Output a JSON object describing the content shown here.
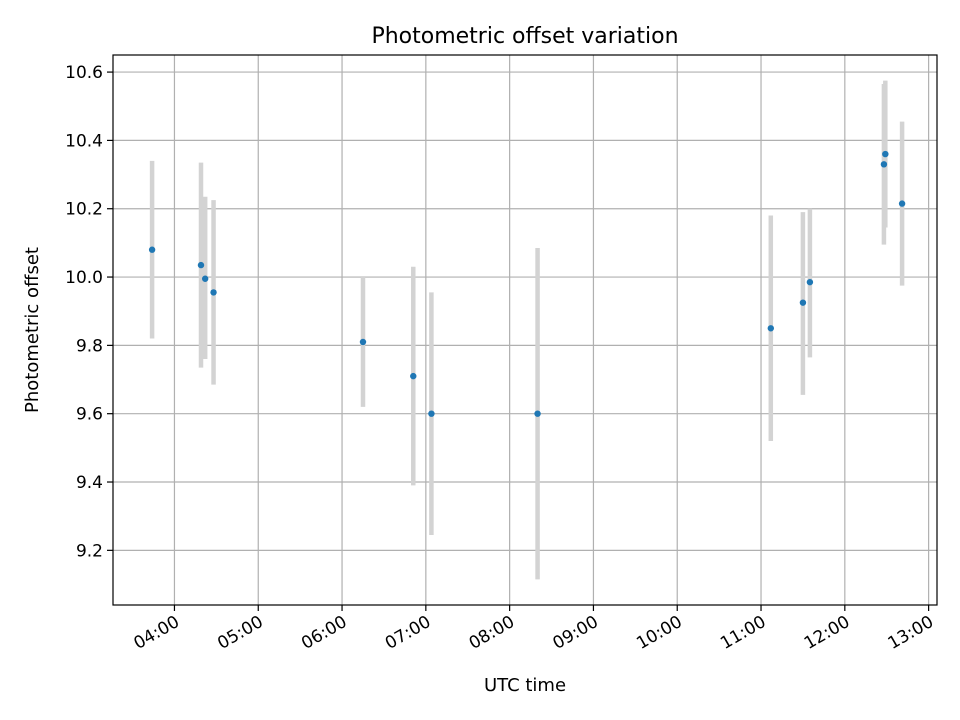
{
  "chart_data": {
    "type": "scatter",
    "title": "Photometric offset variation",
    "xlabel": "UTC time",
    "ylabel": "Photometric offset",
    "xlim": [
      "03:16",
      "13:06"
    ],
    "ylim": [
      9.04,
      10.65
    ],
    "x_ticks": [
      "04:00",
      "05:00",
      "06:00",
      "07:00",
      "08:00",
      "09:00",
      "10:00",
      "11:00",
      "12:00",
      "13:00"
    ],
    "y_ticks": [
      9.2,
      9.4,
      9.6,
      9.8,
      10.0,
      10.2,
      10.4,
      10.6
    ],
    "grid": true,
    "marker_color": "#1f77b4",
    "errorbar_color": "#d3d3d3",
    "series": [
      {
        "points": [
          {
            "x": "03:44",
            "y": 10.08,
            "yerr": [
              9.82,
              10.34
            ]
          },
          {
            "x": "04:19",
            "y": 10.035,
            "yerr": [
              9.735,
              10.335
            ]
          },
          {
            "x": "04:22",
            "y": 9.995,
            "yerr": [
              9.76,
              10.235
            ]
          },
          {
            "x": "04:28",
            "y": 9.955,
            "yerr": [
              9.685,
              10.225
            ]
          },
          {
            "x": "06:15",
            "y": 9.81,
            "yerr": [
              9.62,
              10.0
            ]
          },
          {
            "x": "06:51",
            "y": 9.71,
            "yerr": [
              9.39,
              10.03
            ]
          },
          {
            "x": "07:04",
            "y": 9.6,
            "yerr": [
              9.245,
              9.955
            ]
          },
          {
            "x": "08:20",
            "y": 9.6,
            "yerr": [
              9.115,
              10.085
            ]
          },
          {
            "x": "11:07",
            "y": 9.85,
            "yerr": [
              9.52,
              10.18
            ]
          },
          {
            "x": "11:30",
            "y": 9.925,
            "yerr": [
              9.655,
              10.19
            ]
          },
          {
            "x": "11:35",
            "y": 9.985,
            "yerr": [
              9.765,
              10.2
            ]
          },
          {
            "x": "12:28",
            "y": 10.33,
            "yerr": [
              10.095,
              10.565
            ]
          },
          {
            "x": "12:29",
            "y": 10.36,
            "yerr": [
              10.145,
              10.575
            ]
          },
          {
            "x": "12:41",
            "y": 10.215,
            "yerr": [
              9.975,
              10.455
            ]
          }
        ]
      }
    ]
  }
}
